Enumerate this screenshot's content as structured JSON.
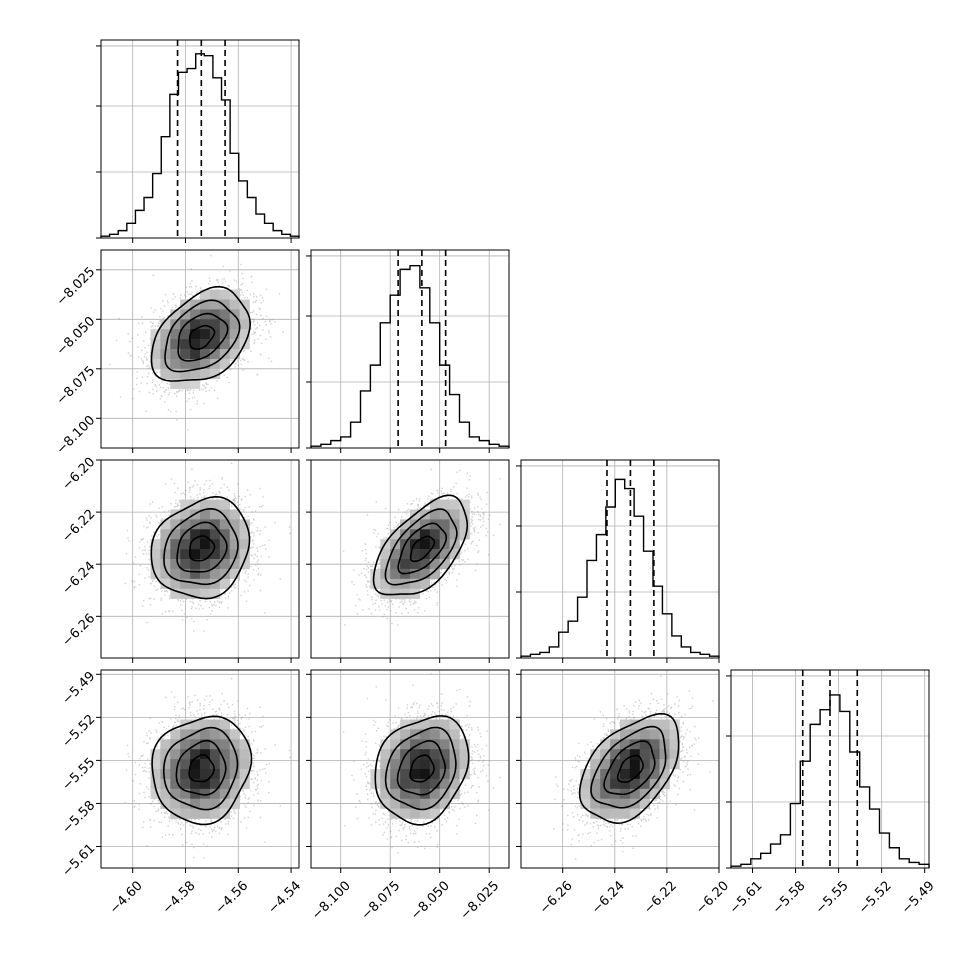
{
  "chart_data": {
    "type": "corner",
    "grid": true,
    "params": [
      {
        "mean": -4.574,
        "sd": 0.0093,
        "range": [
          -4.612,
          -4.537
        ],
        "quantiles": [
          -4.583,
          -4.574,
          -4.565
        ],
        "ticks": [
          -4.6,
          -4.58,
          -4.56,
          -4.54
        ],
        "tick_labels": [
          "−4.60",
          "−4.58",
          "−4.56",
          "−4.54"
        ],
        "hist": [
          0.01,
          0.02,
          0.04,
          0.08,
          0.15,
          0.22,
          0.35,
          0.55,
          0.78,
          0.9,
          0.92,
          1.0,
          0.99,
          0.87,
          0.75,
          0.46,
          0.31,
          0.22,
          0.13,
          0.08,
          0.04,
          0.02,
          0.01
        ]
      },
      {
        "mean": -8.059,
        "sd": 0.0118,
        "range": [
          -8.115,
          -8.015
        ],
        "quantiles": [
          -8.071,
          -8.059,
          -8.047
        ],
        "ticks": [
          -8.1,
          -8.075,
          -8.05,
          -8.025
        ],
        "tick_labels": [
          "−8.100",
          "−8.075",
          "−8.050",
          "−8.025"
        ],
        "hist": [
          0.01,
          0.02,
          0.04,
          0.06,
          0.14,
          0.31,
          0.45,
          0.68,
          0.83,
          0.97,
          0.99,
          0.87,
          0.68,
          0.45,
          0.29,
          0.14,
          0.06,
          0.04,
          0.02,
          0.01
        ]
      },
      {
        "mean": -6.234,
        "sd": 0.0095,
        "range": [
          -6.276,
          -6.2
        ],
        "quantiles": [
          -6.243,
          -6.234,
          -6.225
        ],
        "ticks": [
          -6.26,
          -6.24,
          -6.22,
          -6.2
        ],
        "tick_labels": [
          "−6.26",
          "−6.24",
          "−6.22",
          "−6.20"
        ],
        "hist": [
          0.01,
          0.02,
          0.03,
          0.06,
          0.14,
          0.2,
          0.33,
          0.53,
          0.67,
          0.82,
          0.97,
          0.92,
          0.77,
          0.58,
          0.39,
          0.24,
          0.12,
          0.06,
          0.03,
          0.02,
          0.01
        ]
      },
      {
        "mean": -5.556,
        "sd": 0.0185,
        "range": [
          -5.625,
          -5.487
        ],
        "quantiles": [
          -5.575,
          -5.556,
          -5.537
        ],
        "ticks": [
          -5.61,
          -5.58,
          -5.55,
          -5.52,
          -5.49
        ],
        "tick_labels": [
          "−5.61",
          "−5.58",
          "−5.55",
          "−5.52",
          "−5.49"
        ],
        "hist": [
          0.01,
          0.02,
          0.05,
          0.08,
          0.13,
          0.18,
          0.35,
          0.58,
          0.78,
          0.86,
          0.94,
          0.85,
          0.63,
          0.44,
          0.32,
          0.19,
          0.11,
          0.05,
          0.03,
          0.02
        ]
      }
    ],
    "correlations": [
      [
        1.0,
        0.35,
        0.15,
        0.1
      ],
      [
        0.35,
        1.0,
        0.55,
        0.2
      ],
      [
        0.15,
        0.55,
        1.0,
        0.45
      ],
      [
        0.1,
        0.2,
        0.45,
        1.0
      ]
    ],
    "contour_levels_sigma": [
      0.5,
      1.0,
      1.5,
      2.0
    ]
  }
}
